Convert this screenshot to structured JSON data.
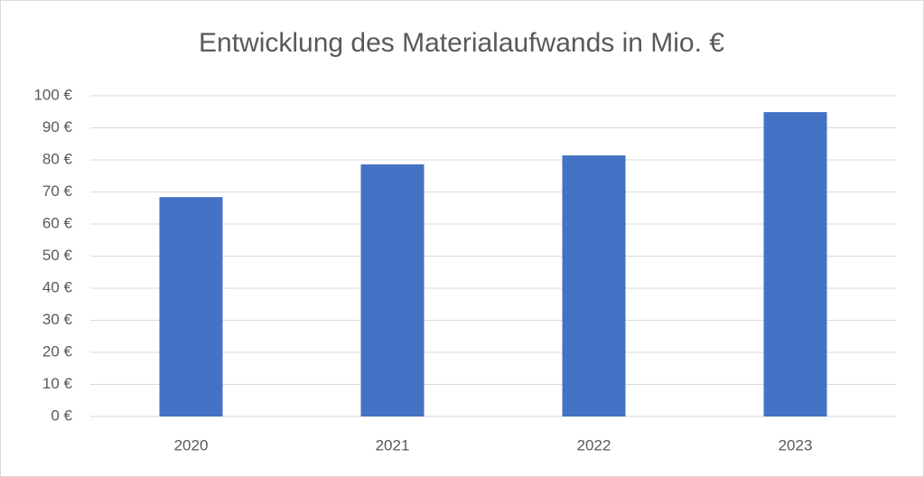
{
  "chart_data": {
    "type": "bar",
    "title": "Entwicklung des Materialaufwands in Mio. €",
    "categories": [
      "2020",
      "2021",
      "2022",
      "2023"
    ],
    "values": [
      68.4,
      78.6,
      81.4,
      94.9
    ],
    "color": "#4472c4",
    "ylim": [
      0,
      100
    ],
    "yticks": [
      {
        "value": 0,
        "label": "0 €"
      },
      {
        "value": 10,
        "label": "10 €"
      },
      {
        "value": 20,
        "label": "20 €"
      },
      {
        "value": 30,
        "label": "30 €"
      },
      {
        "value": 40,
        "label": "40 €"
      },
      {
        "value": 50,
        "label": "50 €"
      },
      {
        "value": 60,
        "label": "60 €"
      },
      {
        "value": 70,
        "label": "70 €"
      },
      {
        "value": 80,
        "label": "80 €"
      },
      {
        "value": 90,
        "label": "90 €"
      },
      {
        "value": 100,
        "label": "100 €"
      }
    ],
    "grid": true
  }
}
